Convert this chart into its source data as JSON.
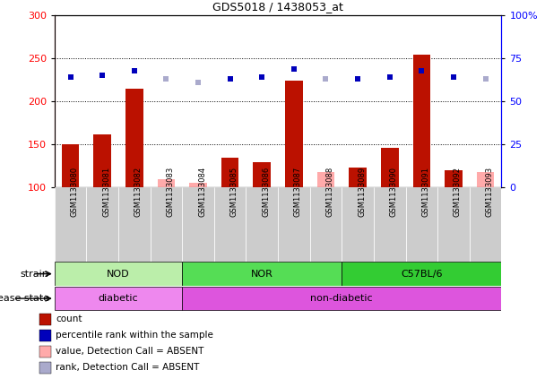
{
  "title": "GDS5018 / 1438053_at",
  "samples": [
    "GSM1133080",
    "GSM1133081",
    "GSM1133082",
    "GSM1133083",
    "GSM1133084",
    "GSM1133085",
    "GSM1133086",
    "GSM1133087",
    "GSM1133088",
    "GSM1133089",
    "GSM1133090",
    "GSM1133091",
    "GSM1133092",
    "GSM1133093"
  ],
  "count_values": [
    150,
    162,
    215,
    null,
    null,
    135,
    129,
    224,
    null,
    123,
    146,
    254,
    120,
    null
  ],
  "count_absent": [
    null,
    null,
    null,
    110,
    106,
    null,
    null,
    null,
    118,
    null,
    null,
    null,
    null,
    118
  ],
  "rank_values": [
    64,
    65,
    68,
    null,
    null,
    63,
    64,
    69,
    null,
    63,
    64,
    68,
    64,
    null
  ],
  "rank_absent": [
    null,
    null,
    null,
    63,
    61,
    null,
    null,
    null,
    63,
    null,
    null,
    null,
    null,
    63
  ],
  "ylim_left": [
    100,
    300
  ],
  "ylim_right": [
    0,
    100
  ],
  "yticks_left": [
    100,
    150,
    200,
    250,
    300
  ],
  "yticks_right": [
    0,
    25,
    50,
    75,
    100
  ],
  "ytick_labels_right": [
    "0",
    "25",
    "50",
    "75",
    "100%"
  ],
  "strain_groups": [
    {
      "label": "NOD",
      "start": 0,
      "end": 4,
      "color": "#BBEEAA"
    },
    {
      "label": "NOR",
      "start": 4,
      "end": 9,
      "color": "#55DD55"
    },
    {
      "label": "C57BL/6",
      "start": 9,
      "end": 14,
      "color": "#33CC33"
    }
  ],
  "disease_groups": [
    {
      "label": "diabetic",
      "start": 0,
      "end": 4,
      "color": "#EE88EE"
    },
    {
      "label": "non-diabetic",
      "start": 4,
      "end": 14,
      "color": "#DD55DD"
    }
  ],
  "bar_color_red": "#BB1100",
  "bar_color_pink": "#FFAAAA",
  "dot_color_blue": "#0000BB",
  "dot_color_lightblue": "#AAAACC",
  "bar_width": 0.55,
  "label_bg": "#CCCCCC",
  "strain_label": "strain",
  "disease_label": "disease state",
  "legend_items": [
    {
      "label": "count",
      "color": "#BB1100"
    },
    {
      "label": "percentile rank within the sample",
      "color": "#0000BB"
    },
    {
      "label": "value, Detection Call = ABSENT",
      "color": "#FFAAAA"
    },
    {
      "label": "rank, Detection Call = ABSENT",
      "color": "#AAAACC"
    }
  ]
}
